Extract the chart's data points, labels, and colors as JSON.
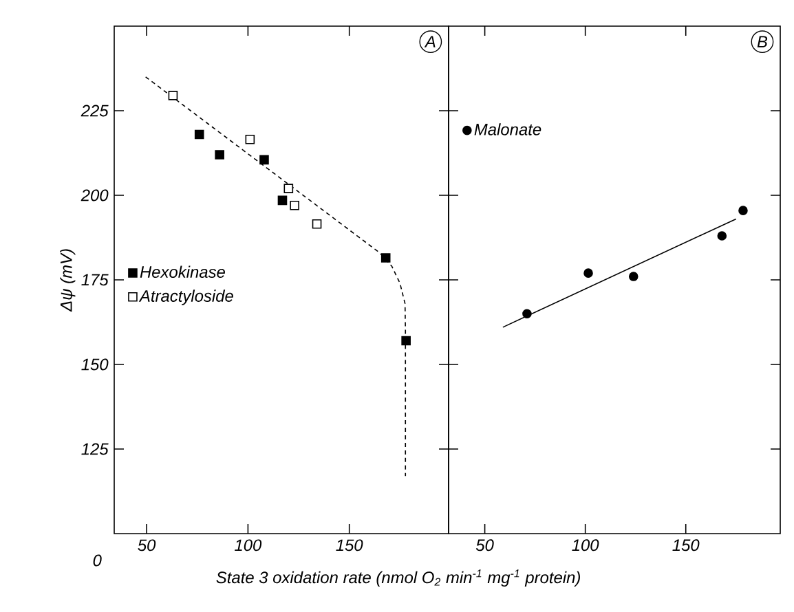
{
  "chart_data": [
    {
      "type": "scatter",
      "ylabel": "Δψ (mV)",
      "xlabel": "State 3 oxidation rate (nmol O$_{2}$ min$^{-1}$ mg$^{-1}$ protein)",
      "annotations": [
        "A",
        "0"
      ],
      "xlim": [
        34,
        199
      ],
      "xticks": [
        50,
        100,
        150
      ],
      "ylim": [
        100,
        250
      ],
      "yticks": [
        125,
        150,
        175,
        200,
        225
      ],
      "legend": "left",
      "series": [
        {
          "name": "Hexokinase",
          "color": "#000000",
          "marker": "square",
          "x": [
            76,
            86,
            108,
            117,
            168,
            178
          ],
          "values": [
            218,
            212,
            210.5,
            198.5,
            181.5,
            157
          ]
        },
        {
          "name": "Atractyloside",
          "color": "#ffffff",
          "marker": "square",
          "x": [
            63,
            101,
            120,
            123,
            134
          ],
          "values": [
            229.5,
            216.5,
            202,
            197,
            191.5
          ]
        },
        {
          "type": "line",
          "line_style": "dashed",
          "marker": "none",
          "color": "#000000",
          "x": [
            49.5,
            165,
            171,
            175,
            177.5,
            177.7,
            177.7
          ],
          "values": [
            235,
            183,
            179,
            174,
            168,
            160,
            117
          ]
        }
      ]
    },
    {
      "type": "scatter",
      "annotations": [
        "B"
      ],
      "xlim": [
        32,
        197
      ],
      "xticks": [
        50,
        100,
        150
      ],
      "ylim": [
        100,
        250
      ],
      "yticks": [
        125,
        150,
        175,
        200,
        225
      ],
      "tick_labels": "x",
      "legend": "top left",
      "series": [
        {
          "name": "Malonate",
          "color": "#000000",
          "marker": "circle",
          "x": [
            71,
            101.5,
            124,
            168,
            178.5
          ],
          "values": [
            165,
            177,
            176,
            188,
            195.5
          ]
        },
        {
          "type": "line",
          "line_style": "solid",
          "marker": "none",
          "color": "#000000",
          "x": [
            59,
            175
          ],
          "values": [
            161,
            193
          ]
        }
      ]
    }
  ]
}
